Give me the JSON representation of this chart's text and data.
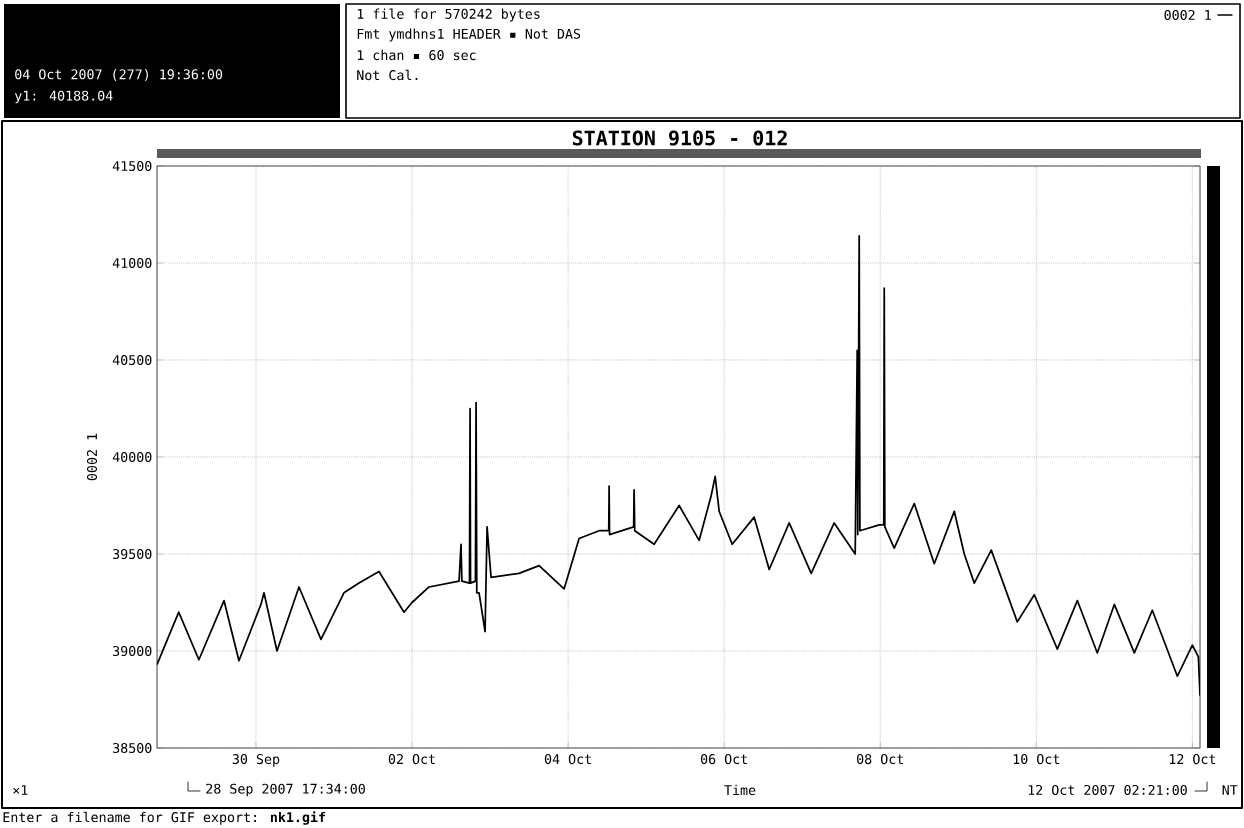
{
  "chart_data": {
    "type": "line",
    "title": "STATION 9105 - 012",
    "xlabel": "Time",
    "ylabel": "0002 1",
    "annotations": [
      "04 Oct 2007 (277) 19:36:00",
      "y1: 40188.04",
      "1 file for 570242 bytes",
      "Fmt ymdhns1 HEADER ▪ Not DAS",
      "1 chan ▪ 60 sec",
      "Not Cal.",
      "×1",
      "28 Sep 2007 17:34:00",
      "12 Oct 2007 02:21:00",
      "NT",
      "Enter a filename for GIF export: **nk1.gif**"
    ],
    "xlim": [
      "2007-09-28T17:34",
      "2007-10-12T02:21"
    ],
    "xticks": [
      {
        "value": "2007-09-30",
        "label": "30 Sep"
      },
      {
        "value": "2007-10-02",
        "label": "02 Oct"
      },
      {
        "value": "2007-10-04",
        "label": "04 Oct"
      },
      {
        "value": "2007-10-06",
        "label": "06 Oct"
      },
      {
        "value": "2007-10-08",
        "label": "08 Oct"
      },
      {
        "value": "2007-10-10",
        "label": "10 Oct"
      },
      {
        "value": "2007-10-12",
        "label": "12 Oct"
      }
    ],
    "ylim": [
      38500,
      41500
    ],
    "yticks": [
      38500,
      39000,
      39500,
      40000,
      40500,
      41000,
      41500
    ],
    "grid": true,
    "legend": "top right",
    "series": [
      {
        "name": "0002 1",
        "color": "#000000",
        "x": [
          "2007-09-28T17:34",
          "2007-09-29T00:15",
          "2007-09-29T06:27",
          "2007-09-29T14:10",
          "2007-09-29T18:46",
          "2007-09-30T01:32",
          "2007-09-30T02:28",
          "2007-09-30T06:28",
          "2007-09-30T13:14",
          "2007-09-30T20:00",
          "2007-10-01T03:04",
          "2007-10-01T07:42",
          "2007-10-01T13:51",
          "2007-10-01T21:32",
          "2007-10-02T00:00",
          "2007-10-02T05:14",
          "2007-10-02T14:28",
          "2007-10-02T15:04",
          "2007-10-02T15:20",
          "2007-10-02T17:40",
          "2007-10-02T17:51",
          "2007-10-02T18:00",
          "2007-10-02T19:30",
          "2007-10-02T19:42",
          "2007-10-02T19:55",
          "2007-10-02T20:37",
          "2007-10-02T22:28",
          "2007-10-02T23:05",
          "2007-10-03T00:18",
          "2007-10-03T08:55",
          "2007-10-03T15:05",
          "2007-10-03T22:46",
          "2007-10-04T03:23",
          "2007-10-04T09:32",
          "2007-10-04T12:30",
          "2007-10-04T12:37",
          "2007-10-04T12:45",
          "2007-10-04T20:10",
          "2007-10-04T20:18",
          "2007-10-04T20:30",
          "2007-10-05T02:28",
          "2007-10-05T10:09",
          "2007-10-05T16:18",
          "2007-10-05T20:00",
          "2007-10-05T21:14",
          "2007-10-05T22:28",
          "2007-10-06T02:28",
          "2007-10-06T09:14",
          "2007-10-06T13:51",
          "2007-10-06T20:00",
          "2007-10-07T02:46",
          "2007-10-07T09:50",
          "2007-10-07T16:18",
          "2007-10-07T16:55",
          "2007-10-07T17:05",
          "2007-10-07T17:32",
          "2007-10-07T17:45",
          "2007-10-07T23:41",
          "2007-10-08T01:05",
          "2007-10-08T01:14",
          "2007-10-08T01:25",
          "2007-10-08T04:18",
          "2007-10-08T10:28",
          "2007-10-08T16:37",
          "2007-10-08T22:46",
          "2007-10-09T01:51",
          "2007-10-09T04:55",
          "2007-10-09T10:09",
          "2007-10-09T18:09",
          "2007-10-09T23:23",
          "2007-10-10T06:28",
          "2007-10-10T12:37",
          "2007-10-10T18:46",
          "2007-10-11T00:00",
          "2007-10-11T06:09",
          "2007-10-11T11:41",
          "2007-10-11T19:23",
          "2007-10-12T00:00",
          "2007-10-12T01:51",
          "2007-10-12T02:21"
        ],
        "values": [
          38930,
          39200,
          38955,
          39260,
          38950,
          39240,
          39300,
          39000,
          39330,
          39060,
          39300,
          39350,
          39410,
          39200,
          39250,
          39330,
          39360,
          39550,
          39360,
          39350,
          40250,
          39350,
          39360,
          40280,
          39300,
          39300,
          39100,
          39640,
          39380,
          39400,
          39440,
          39320,
          39580,
          39620,
          39620,
          39850,
          39600,
          39640,
          39830,
          39620,
          39550,
          39750,
          39570,
          39800,
          39900,
          39720,
          39550,
          39690,
          39420,
          39660,
          39400,
          39660,
          39500,
          40550,
          39600,
          41140,
          39620,
          39650,
          39650,
          40870,
          39640,
          39530,
          39760,
          39450,
          39720,
          39500,
          39350,
          39520,
          39150,
          39290,
          39010,
          39260,
          38990,
          39240,
          38990,
          39210,
          38870,
          39030,
          38970,
          38770
        ]
      }
    ]
  }
}
